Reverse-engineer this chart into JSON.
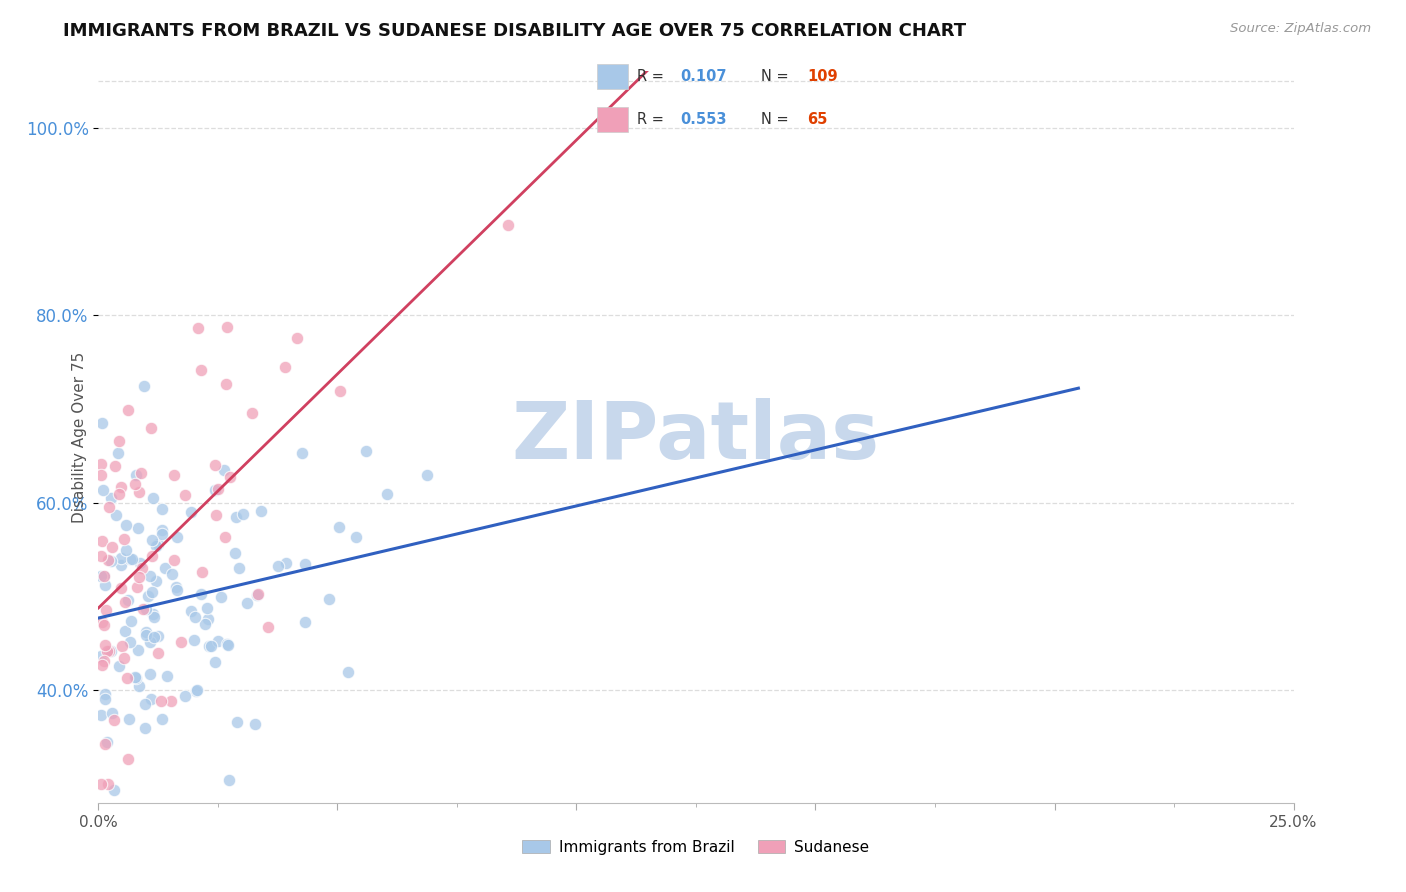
{
  "title": "IMMIGRANTS FROM BRAZIL VS SUDANESE DISABILITY AGE OVER 75 CORRELATION CHART",
  "source": "Source: ZipAtlas.com",
  "ylabel": "Disability Age Over 75",
  "xlim": [
    0.0,
    0.25
  ],
  "ylim": [
    0.28,
    1.06
  ],
  "y_ticks": [
    0.4,
    0.6,
    0.8,
    1.0
  ],
  "y_tick_labels": [
    "40.0%",
    "60.0%",
    "80.0%",
    "100.0%"
  ],
  "series1": {
    "name": "Immigrants from Brazil",
    "R": 0.107,
    "N": 109,
    "color": "#a8c8e8",
    "line_color": "#3060c0",
    "marker": "o"
  },
  "series2": {
    "name": "Sudanese",
    "R": 0.553,
    "N": 65,
    "color": "#f0a0b8",
    "line_color": "#d04060",
    "marker": "o"
  },
  "watermark": "ZIPatlas",
  "watermark_color": "#c8d8ec",
  "background_color": "#ffffff",
  "grid_color": "#dddddd"
}
